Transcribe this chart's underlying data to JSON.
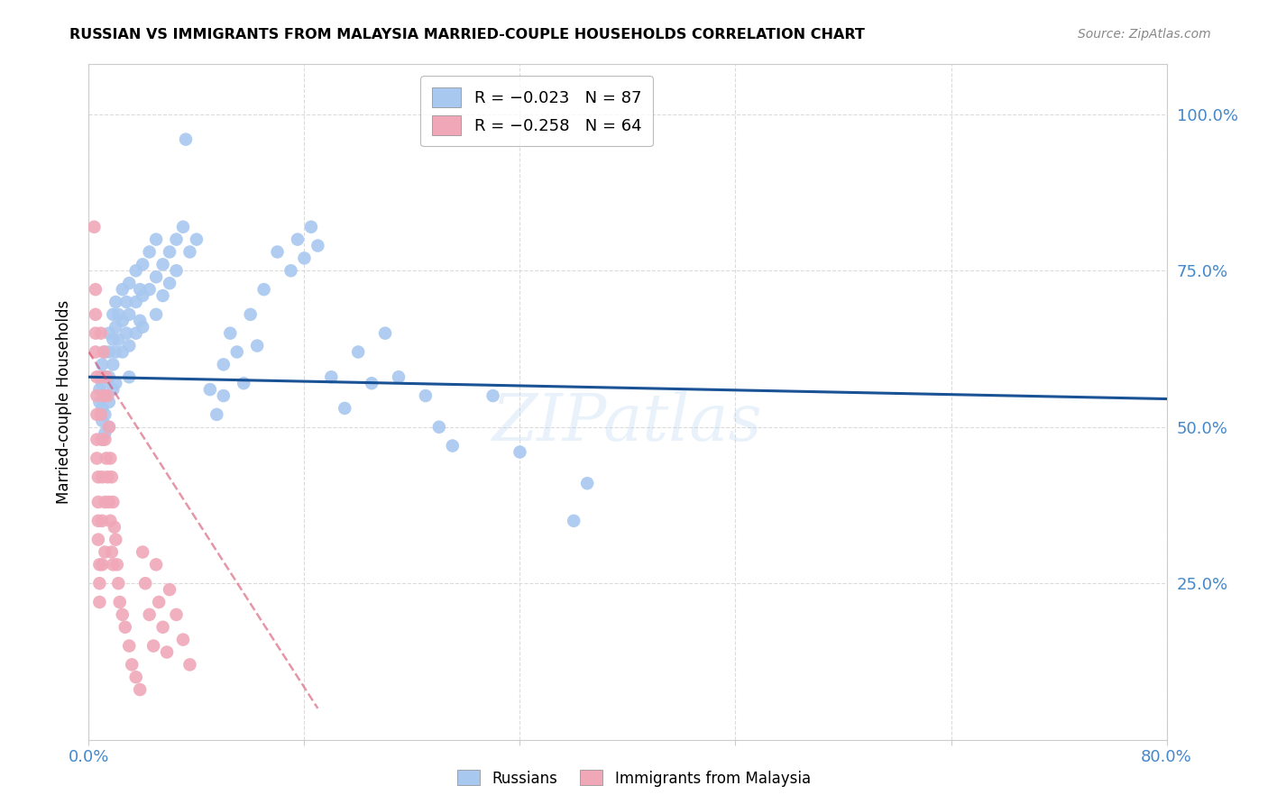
{
  "title": "RUSSIAN VS IMMIGRANTS FROM MALAYSIA MARRIED-COUPLE HOUSEHOLDS CORRELATION CHART",
  "source": "Source: ZipAtlas.com",
  "ylabel": "Married-couple Households",
  "ytick_labels": [
    "100.0%",
    "75.0%",
    "50.0%",
    "25.0%"
  ],
  "ytick_values": [
    1.0,
    0.75,
    0.5,
    0.25
  ],
  "xmin": 0.0,
  "xmax": 0.8,
  "ymin": 0.0,
  "ymax": 1.08,
  "watermark": "ZIPatlas",
  "russians_color": "#a8c8f0",
  "malaysia_color": "#f0a8b8",
  "russians_line_color": "#1a5296",
  "malaysia_line_color": "#d04060",
  "russians_scatter": [
    [
      0.008,
      0.56
    ],
    [
      0.008,
      0.54
    ],
    [
      0.01,
      0.6
    ],
    [
      0.01,
      0.57
    ],
    [
      0.01,
      0.53
    ],
    [
      0.01,
      0.51
    ],
    [
      0.01,
      0.48
    ],
    [
      0.012,
      0.62
    ],
    [
      0.012,
      0.58
    ],
    [
      0.012,
      0.55
    ],
    [
      0.012,
      0.52
    ],
    [
      0.012,
      0.49
    ],
    [
      0.015,
      0.65
    ],
    [
      0.015,
      0.62
    ],
    [
      0.015,
      0.58
    ],
    [
      0.015,
      0.54
    ],
    [
      0.015,
      0.5
    ],
    [
      0.018,
      0.68
    ],
    [
      0.018,
      0.64
    ],
    [
      0.018,
      0.6
    ],
    [
      0.018,
      0.56
    ],
    [
      0.02,
      0.7
    ],
    [
      0.02,
      0.66
    ],
    [
      0.02,
      0.62
    ],
    [
      0.02,
      0.57
    ],
    [
      0.022,
      0.68
    ],
    [
      0.022,
      0.64
    ],
    [
      0.025,
      0.72
    ],
    [
      0.025,
      0.67
    ],
    [
      0.025,
      0.62
    ],
    [
      0.028,
      0.7
    ],
    [
      0.028,
      0.65
    ],
    [
      0.03,
      0.73
    ],
    [
      0.03,
      0.68
    ],
    [
      0.03,
      0.63
    ],
    [
      0.03,
      0.58
    ],
    [
      0.035,
      0.75
    ],
    [
      0.035,
      0.7
    ],
    [
      0.035,
      0.65
    ],
    [
      0.038,
      0.72
    ],
    [
      0.038,
      0.67
    ],
    [
      0.04,
      0.76
    ],
    [
      0.04,
      0.71
    ],
    [
      0.04,
      0.66
    ],
    [
      0.045,
      0.78
    ],
    [
      0.045,
      0.72
    ],
    [
      0.05,
      0.8
    ],
    [
      0.05,
      0.74
    ],
    [
      0.05,
      0.68
    ],
    [
      0.055,
      0.76
    ],
    [
      0.055,
      0.71
    ],
    [
      0.06,
      0.78
    ],
    [
      0.06,
      0.73
    ],
    [
      0.065,
      0.8
    ],
    [
      0.065,
      0.75
    ],
    [
      0.07,
      0.82
    ],
    [
      0.072,
      0.96
    ],
    [
      0.075,
      0.78
    ],
    [
      0.08,
      0.8
    ],
    [
      0.09,
      0.56
    ],
    [
      0.095,
      0.52
    ],
    [
      0.1,
      0.6
    ],
    [
      0.1,
      0.55
    ],
    [
      0.105,
      0.65
    ],
    [
      0.11,
      0.62
    ],
    [
      0.115,
      0.57
    ],
    [
      0.12,
      0.68
    ],
    [
      0.125,
      0.63
    ],
    [
      0.13,
      0.72
    ],
    [
      0.14,
      0.78
    ],
    [
      0.15,
      0.75
    ],
    [
      0.155,
      0.8
    ],
    [
      0.16,
      0.77
    ],
    [
      0.165,
      0.82
    ],
    [
      0.17,
      0.79
    ],
    [
      0.18,
      0.58
    ],
    [
      0.19,
      0.53
    ],
    [
      0.2,
      0.62
    ],
    [
      0.21,
      0.57
    ],
    [
      0.22,
      0.65
    ],
    [
      0.23,
      0.58
    ],
    [
      0.25,
      0.55
    ],
    [
      0.26,
      0.5
    ],
    [
      0.27,
      0.47
    ],
    [
      0.3,
      0.55
    ],
    [
      0.32,
      0.46
    ],
    [
      0.36,
      0.35
    ],
    [
      0.37,
      0.41
    ]
  ],
  "malaysia_scatter": [
    [
      0.004,
      0.82
    ],
    [
      0.005,
      0.72
    ],
    [
      0.005,
      0.68
    ],
    [
      0.005,
      0.65
    ],
    [
      0.005,
      0.62
    ],
    [
      0.006,
      0.58
    ],
    [
      0.006,
      0.55
    ],
    [
      0.006,
      0.52
    ],
    [
      0.006,
      0.48
    ],
    [
      0.006,
      0.45
    ],
    [
      0.007,
      0.42
    ],
    [
      0.007,
      0.38
    ],
    [
      0.007,
      0.35
    ],
    [
      0.007,
      0.32
    ],
    [
      0.008,
      0.28
    ],
    [
      0.008,
      0.25
    ],
    [
      0.008,
      0.22
    ],
    [
      0.009,
      0.65
    ],
    [
      0.009,
      0.58
    ],
    [
      0.009,
      0.52
    ],
    [
      0.01,
      0.48
    ],
    [
      0.01,
      0.42
    ],
    [
      0.01,
      0.35
    ],
    [
      0.01,
      0.28
    ],
    [
      0.011,
      0.62
    ],
    [
      0.011,
      0.55
    ],
    [
      0.012,
      0.48
    ],
    [
      0.012,
      0.38
    ],
    [
      0.012,
      0.3
    ],
    [
      0.013,
      0.58
    ],
    [
      0.013,
      0.45
    ],
    [
      0.014,
      0.55
    ],
    [
      0.014,
      0.42
    ],
    [
      0.015,
      0.5
    ],
    [
      0.015,
      0.38
    ],
    [
      0.016,
      0.45
    ],
    [
      0.016,
      0.35
    ],
    [
      0.017,
      0.42
    ],
    [
      0.017,
      0.3
    ],
    [
      0.018,
      0.38
    ],
    [
      0.018,
      0.28
    ],
    [
      0.019,
      0.34
    ],
    [
      0.02,
      0.32
    ],
    [
      0.021,
      0.28
    ],
    [
      0.022,
      0.25
    ],
    [
      0.023,
      0.22
    ],
    [
      0.025,
      0.2
    ],
    [
      0.027,
      0.18
    ],
    [
      0.03,
      0.15
    ],
    [
      0.032,
      0.12
    ],
    [
      0.035,
      0.1
    ],
    [
      0.038,
      0.08
    ],
    [
      0.04,
      0.3
    ],
    [
      0.042,
      0.25
    ],
    [
      0.045,
      0.2
    ],
    [
      0.048,
      0.15
    ],
    [
      0.05,
      0.28
    ],
    [
      0.052,
      0.22
    ],
    [
      0.055,
      0.18
    ],
    [
      0.058,
      0.14
    ],
    [
      0.06,
      0.24
    ],
    [
      0.065,
      0.2
    ],
    [
      0.07,
      0.16
    ],
    [
      0.075,
      0.12
    ]
  ],
  "russians_line_x": [
    0.0,
    0.8
  ],
  "russians_line_y": [
    0.58,
    0.545
  ],
  "malaysia_line_x": [
    0.0,
    0.17
  ],
  "malaysia_line_y": [
    0.62,
    0.05
  ]
}
